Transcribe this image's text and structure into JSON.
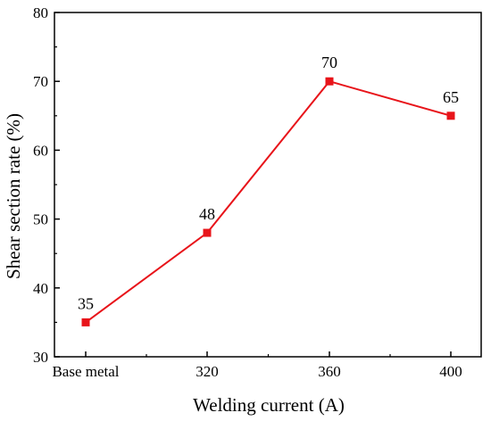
{
  "chart_data": {
    "type": "line",
    "categories": [
      "Base metal",
      "320",
      "360",
      "400"
    ],
    "series": [
      {
        "values": [
          35,
          48,
          70,
          65
        ],
        "color": "#e8141a",
        "marker": "square"
      }
    ],
    "data_labels": [
      "35",
      "48",
      "70",
      "65"
    ],
    "xlabel": "Welding current (A)",
    "ylabel": "Shear section rate (%)",
    "ylim": [
      30,
      80
    ],
    "yticks": [
      30,
      40,
      50,
      60,
      70,
      80
    ],
    "grid": false,
    "legend": "none"
  }
}
